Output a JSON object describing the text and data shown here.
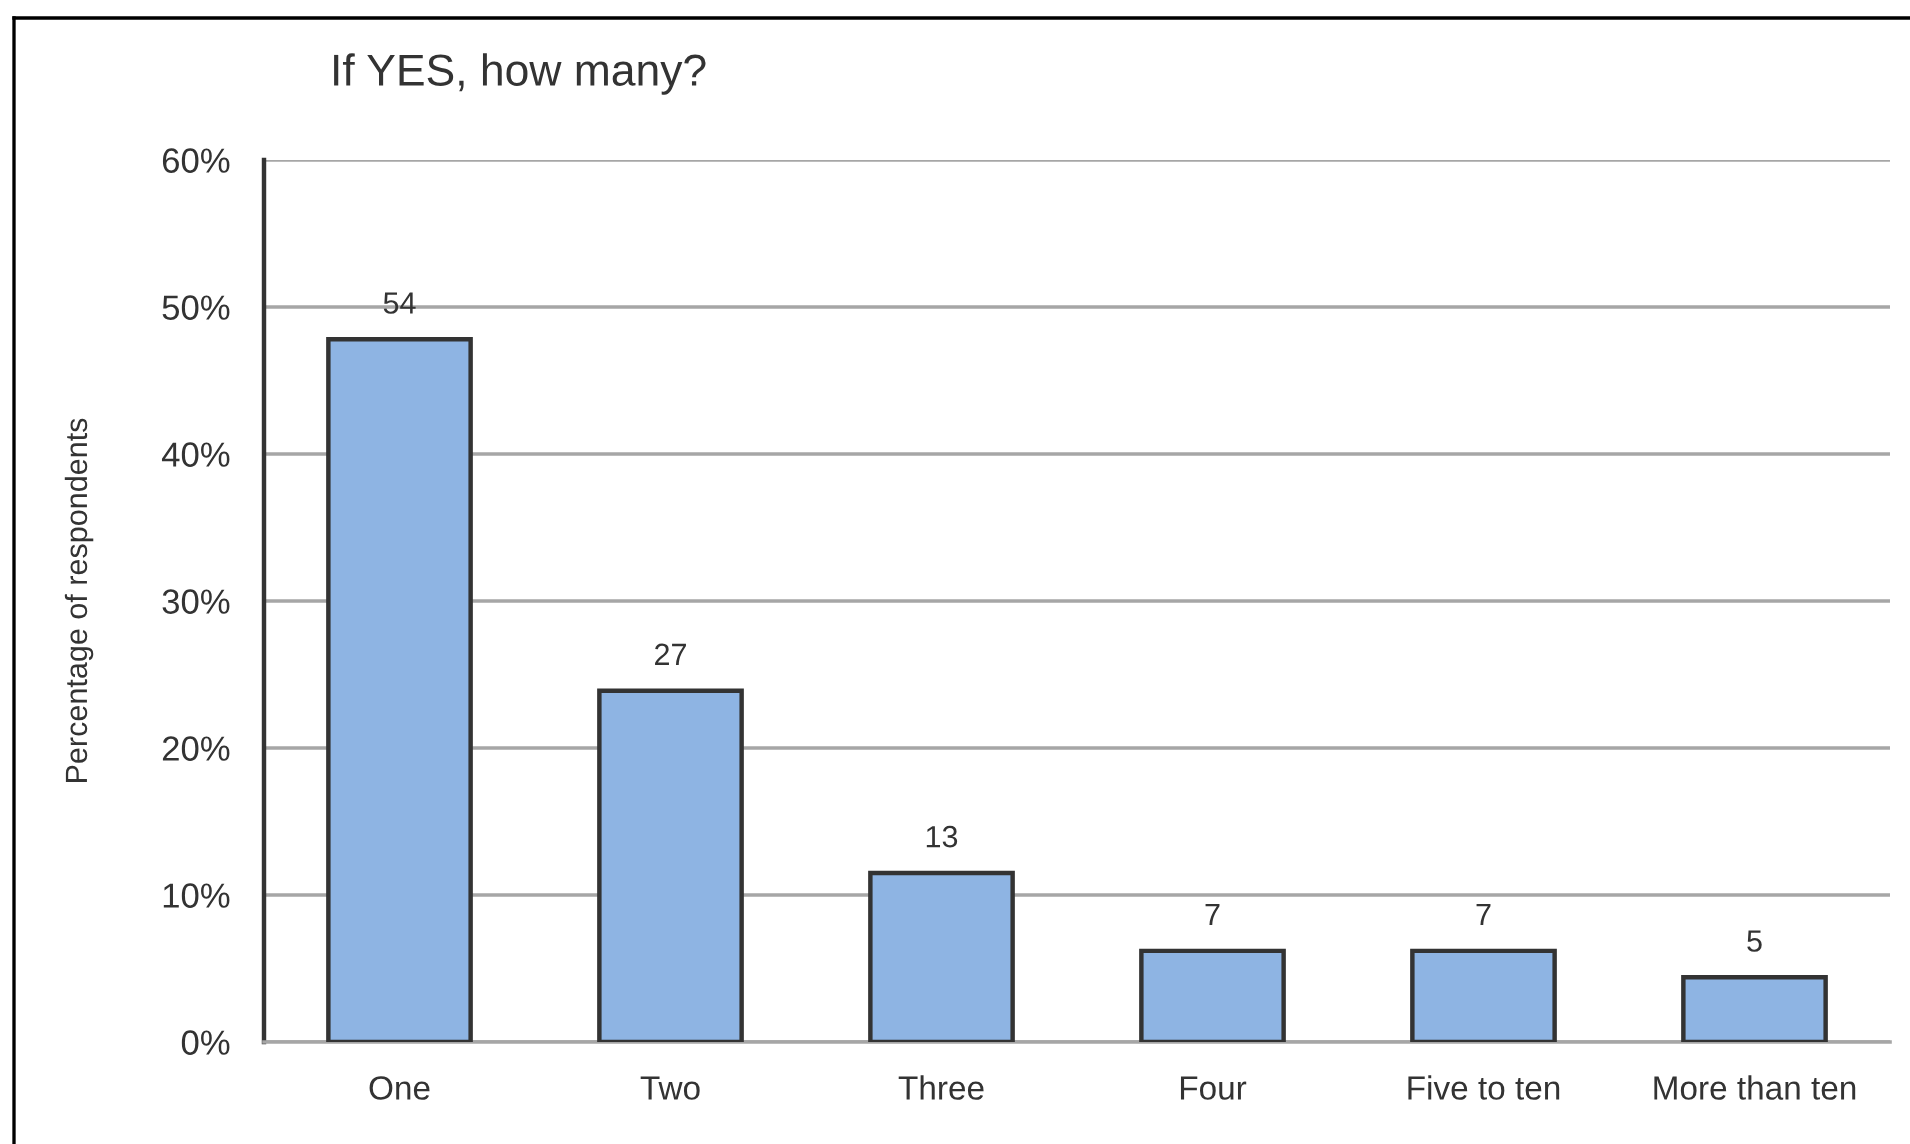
{
  "chart_data": {
    "type": "bar",
    "title": "If YES, how many?",
    "ylabel": "Percentage of respondents",
    "categories": [
      "One",
      "Two",
      "Three",
      "Four",
      "Five to ten",
      "More than ten"
    ],
    "values": [
      47.8,
      23.9,
      11.5,
      6.2,
      6.2,
      4.4
    ],
    "color": "#8eb4e3",
    "annotations": [
      {
        "text": "54",
        "x": "One",
        "y": 47.8
      },
      {
        "text": "27",
        "x": "Two",
        "y": 23.9
      },
      {
        "text": "13",
        "x": "Three",
        "y": 11.5
      },
      {
        "text": "7",
        "x": "Four",
        "y": 6.2
      },
      {
        "text": "7",
        "x": "Five to ten",
        "y": 6.2
      },
      {
        "text": "5",
        "x": "More than ten",
        "y": 4.4
      }
    ],
    "ylim": [
      0,
      60
    ],
    "yticks": [
      {
        "value": 0,
        "label": "0%"
      },
      {
        "value": 10,
        "label": "10%"
      },
      {
        "value": 20,
        "label": "20%"
      },
      {
        "value": 30,
        "label": "30%"
      },
      {
        "value": 40,
        "label": "40%"
      },
      {
        "value": 50,
        "label": "50%"
      },
      {
        "value": 60,
        "label": "60%"
      }
    ],
    "grid": "y"
  }
}
